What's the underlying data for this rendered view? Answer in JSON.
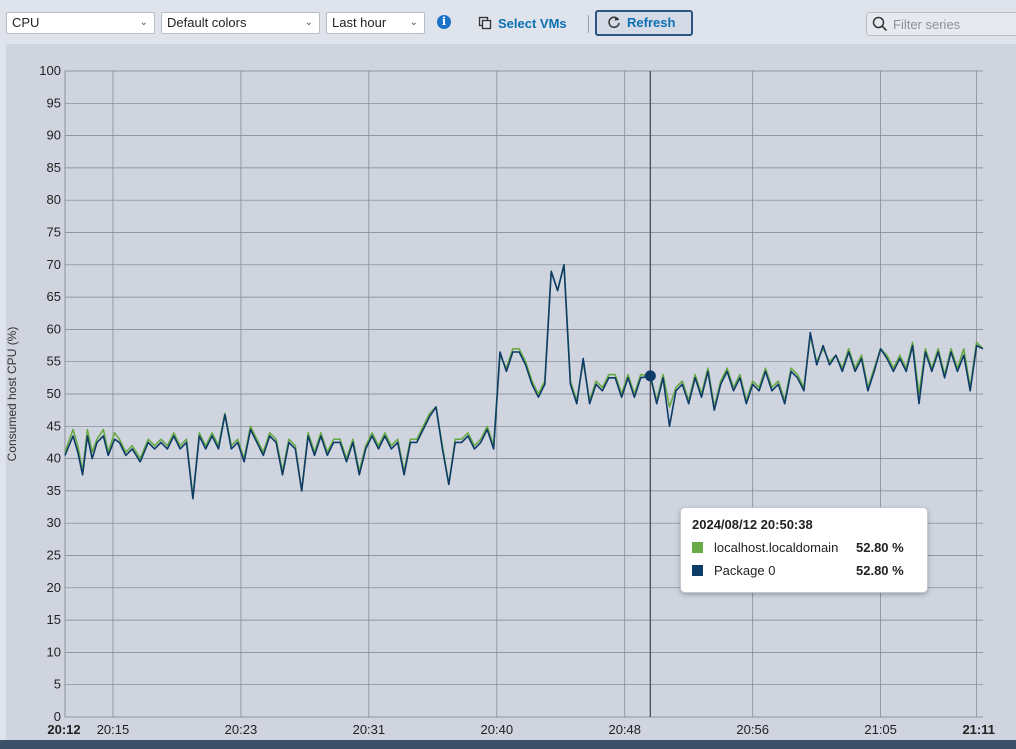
{
  "toolbar": {
    "metric_select": "CPU",
    "color_select": "Default colors",
    "range_select": "Last hour",
    "select_vms_label": "Select VMs",
    "refresh_label": "Refresh",
    "filter_placeholder": "Filter series"
  },
  "colors": {
    "series_green": "#6aaa46",
    "series_navy": "#0e3c68",
    "accent_blue": "#0b6fb3"
  },
  "icons": [
    "chevron-down-icon",
    "info-icon",
    "vm-group-icon",
    "refresh-icon",
    "search-icon"
  ],
  "tooltip": {
    "time": "2024/08/12 20:50:38",
    "rows": [
      {
        "name": "localhost.localdomain",
        "value": "52.80 %",
        "color": "#6aaa46"
      },
      {
        "name": "Package 0",
        "value": "52.80 %",
        "color": "#0e3c68"
      }
    ]
  },
  "chart_data": {
    "type": "line",
    "title": "",
    "xlabel": "",
    "ylabel": "Consumed host CPU (%)",
    "ylim": [
      0,
      100
    ],
    "yticks": [
      0,
      5,
      10,
      15,
      20,
      25,
      30,
      35,
      40,
      45,
      50,
      55,
      60,
      65,
      70,
      75,
      80,
      85,
      90,
      95,
      100
    ],
    "xlim": [
      "20:12",
      "21:11"
    ],
    "xticks": [
      {
        "label": "20:12",
        "min": 0,
        "bold": true
      },
      {
        "label": "20:15",
        "min": 3,
        "bold": false
      },
      {
        "label": "20:23",
        "min": 11,
        "bold": false
      },
      {
        "label": "20:31",
        "min": 19,
        "bold": false
      },
      {
        "label": "20:40",
        "min": 27,
        "bold": false
      },
      {
        "label": "20:48",
        "min": 35,
        "bold": false
      },
      {
        "label": "20:56",
        "min": 43,
        "bold": false
      },
      {
        "label": "21:05",
        "min": 51,
        "bold": false
      },
      {
        "label": "21:11",
        "min": 57,
        "bold": true
      }
    ],
    "grid": true,
    "crosshair_min": 36.6,
    "marker": {
      "min": 36.6,
      "value": 52.8
    },
    "series": [
      {
        "name": "localhost.localdomain",
        "color": "#6aaa46",
        "points": [
          [
            0,
            41
          ],
          [
            0.5,
            44.5
          ],
          [
            0.8,
            42
          ],
          [
            1.1,
            38
          ],
          [
            1.4,
            44.5
          ],
          [
            1.7,
            41
          ],
          [
            2.0,
            43
          ],
          [
            2.4,
            44.5
          ],
          [
            2.7,
            41
          ],
          [
            3.1,
            44
          ],
          [
            3.4,
            43
          ],
          [
            3.8,
            41
          ],
          [
            4.2,
            42
          ],
          [
            4.7,
            40
          ],
          [
            5.2,
            43
          ],
          [
            5.6,
            42
          ],
          [
            6.0,
            43
          ],
          [
            6.4,
            42
          ],
          [
            6.8,
            44
          ],
          [
            7.2,
            42
          ],
          [
            7.6,
            43
          ],
          [
            8.0,
            34
          ],
          [
            8.4,
            44
          ],
          [
            8.8,
            42
          ],
          [
            9.2,
            44
          ],
          [
            9.6,
            42
          ],
          [
            10.0,
            47
          ],
          [
            10.4,
            42
          ],
          [
            10.8,
            43
          ],
          [
            11.2,
            40
          ],
          [
            11.6,
            45
          ],
          [
            12.0,
            43
          ],
          [
            12.4,
            41
          ],
          [
            12.8,
            44
          ],
          [
            13.2,
            43
          ],
          [
            13.6,
            38
          ],
          [
            14.0,
            43
          ],
          [
            14.4,
            42
          ],
          [
            14.8,
            35
          ],
          [
            15.2,
            44
          ],
          [
            15.6,
            41
          ],
          [
            16.0,
            44
          ],
          [
            16.4,
            41
          ],
          [
            16.8,
            43
          ],
          [
            17.2,
            43
          ],
          [
            17.6,
            40
          ],
          [
            18.0,
            43
          ],
          [
            18.4,
            38
          ],
          [
            18.8,
            42
          ],
          [
            19.2,
            44
          ],
          [
            19.6,
            42
          ],
          [
            20.0,
            44
          ],
          [
            20.4,
            42
          ],
          [
            20.8,
            43
          ],
          [
            21.2,
            38
          ],
          [
            21.6,
            43
          ],
          [
            22.0,
            43
          ],
          [
            22.4,
            45
          ],
          [
            22.8,
            47
          ],
          [
            23.2,
            48
          ],
          [
            23.6,
            42
          ],
          [
            24.0,
            36
          ],
          [
            24.4,
            43
          ],
          [
            24.8,
            43
          ],
          [
            25.2,
            44
          ],
          [
            25.6,
            42
          ],
          [
            26.0,
            43
          ],
          [
            26.4,
            45
          ],
          [
            26.8,
            42
          ],
          [
            27.2,
            56
          ],
          [
            27.6,
            54
          ],
          [
            28.0,
            57
          ],
          [
            28.4,
            57
          ],
          [
            28.8,
            55
          ],
          [
            29.2,
            52
          ],
          [
            29.6,
            50
          ],
          [
            30.0,
            52
          ],
          [
            30.4,
            69
          ],
          [
            30.8,
            66
          ],
          [
            31.2,
            70
          ],
          [
            31.6,
            52
          ],
          [
            32.0,
            49
          ],
          [
            32.4,
            55
          ],
          [
            32.8,
            49
          ],
          [
            33.2,
            52
          ],
          [
            33.6,
            51
          ],
          [
            34.0,
            53
          ],
          [
            34.4,
            53
          ],
          [
            34.8,
            50
          ],
          [
            35.2,
            53
          ],
          [
            35.6,
            50
          ],
          [
            36.0,
            53
          ],
          [
            36.6,
            52.8
          ],
          [
            37.0,
            49
          ],
          [
            37.4,
            53
          ],
          [
            37.8,
            48
          ],
          [
            38.2,
            51
          ],
          [
            38.6,
            52
          ],
          [
            39.0,
            49
          ],
          [
            39.4,
            53
          ],
          [
            39.8,
            50
          ],
          [
            40.2,
            54
          ],
          [
            40.6,
            48
          ],
          [
            41.0,
            52
          ],
          [
            41.4,
            54
          ],
          [
            41.8,
            51
          ],
          [
            42.2,
            53
          ],
          [
            42.6,
            49
          ],
          [
            43.0,
            52
          ],
          [
            43.4,
            51
          ],
          [
            43.8,
            54
          ],
          [
            44.2,
            51
          ],
          [
            44.6,
            52
          ],
          [
            45.0,
            49
          ],
          [
            45.4,
            54
          ],
          [
            45.8,
            53
          ],
          [
            46.2,
            51
          ],
          [
            46.6,
            59
          ],
          [
            47.0,
            55
          ],
          [
            47.4,
            57
          ],
          [
            47.8,
            55
          ],
          [
            48.2,
            56
          ],
          [
            48.6,
            54
          ],
          [
            49.0,
            57
          ],
          [
            49.4,
            54
          ],
          [
            49.8,
            56
          ],
          [
            50.2,
            51
          ],
          [
            50.6,
            54
          ],
          [
            51.0,
            57
          ],
          [
            51.4,
            56
          ],
          [
            51.8,
            54
          ],
          [
            52.2,
            56
          ],
          [
            52.6,
            54
          ],
          [
            53.0,
            58
          ],
          [
            53.4,
            50
          ],
          [
            53.8,
            57
          ],
          [
            54.2,
            54
          ],
          [
            54.6,
            57
          ],
          [
            55.0,
            53
          ],
          [
            55.4,
            57
          ],
          [
            55.8,
            54
          ],
          [
            56.2,
            57
          ],
          [
            56.6,
            51
          ],
          [
            57.0,
            58
          ],
          [
            57.4,
            57
          ]
        ]
      },
      {
        "name": "Package 0",
        "color": "#0e3c68",
        "points": [
          [
            0,
            40.5
          ],
          [
            0.5,
            43.5
          ],
          [
            0.8,
            41
          ],
          [
            1.1,
            37.5
          ],
          [
            1.4,
            43.5
          ],
          [
            1.7,
            40
          ],
          [
            2.0,
            42.5
          ],
          [
            2.4,
            43.5
          ],
          [
            2.7,
            40.5
          ],
          [
            3.1,
            43
          ],
          [
            3.4,
            42.5
          ],
          [
            3.8,
            40.5
          ],
          [
            4.2,
            41.5
          ],
          [
            4.7,
            39.5
          ],
          [
            5.2,
            42.5
          ],
          [
            5.6,
            41.5
          ],
          [
            6.0,
            42.5
          ],
          [
            6.4,
            41.5
          ],
          [
            6.8,
            43.5
          ],
          [
            7.2,
            41.5
          ],
          [
            7.6,
            42.5
          ],
          [
            8.0,
            33.8
          ],
          [
            8.4,
            43.5
          ],
          [
            8.8,
            41.5
          ],
          [
            9.2,
            43.5
          ],
          [
            9.6,
            41.5
          ],
          [
            10.0,
            46.8
          ],
          [
            10.4,
            41.5
          ],
          [
            10.8,
            42.5
          ],
          [
            11.2,
            39.5
          ],
          [
            11.6,
            44.5
          ],
          [
            12.0,
            42.5
          ],
          [
            12.4,
            40.5
          ],
          [
            12.8,
            43.5
          ],
          [
            13.2,
            42.5
          ],
          [
            13.6,
            37.5
          ],
          [
            14.0,
            42.5
          ],
          [
            14.4,
            41.5
          ],
          [
            14.8,
            35
          ],
          [
            15.2,
            43.5
          ],
          [
            15.6,
            40.5
          ],
          [
            16.0,
            43.5
          ],
          [
            16.4,
            40.5
          ],
          [
            16.8,
            42.5
          ],
          [
            17.2,
            42.5
          ],
          [
            17.6,
            39.5
          ],
          [
            18.0,
            42.5
          ],
          [
            18.4,
            37.5
          ],
          [
            18.8,
            41.5
          ],
          [
            19.2,
            43.5
          ],
          [
            19.6,
            41.5
          ],
          [
            20.0,
            43.5
          ],
          [
            20.4,
            41.5
          ],
          [
            20.8,
            42.5
          ],
          [
            21.2,
            37.5
          ],
          [
            21.6,
            42.5
          ],
          [
            22.0,
            42.5
          ],
          [
            22.4,
            44.5
          ],
          [
            22.8,
            46.5
          ],
          [
            23.2,
            48
          ],
          [
            23.6,
            41.5
          ],
          [
            24.0,
            36
          ],
          [
            24.4,
            42.5
          ],
          [
            24.8,
            42.5
          ],
          [
            25.2,
            43.5
          ],
          [
            25.6,
            41.5
          ],
          [
            26.0,
            42.5
          ],
          [
            26.4,
            44.5
          ],
          [
            26.8,
            41.5
          ],
          [
            27.2,
            56.5
          ],
          [
            27.6,
            53.5
          ],
          [
            28.0,
            56.5
          ],
          [
            28.4,
            56.5
          ],
          [
            28.8,
            54.5
          ],
          [
            29.2,
            51.5
          ],
          [
            29.6,
            49.5
          ],
          [
            30.0,
            51.5
          ],
          [
            30.4,
            69
          ],
          [
            30.8,
            66
          ],
          [
            31.2,
            70
          ],
          [
            31.6,
            51.5
          ],
          [
            32.0,
            48.5
          ],
          [
            32.4,
            55.5
          ],
          [
            32.8,
            48.5
          ],
          [
            33.2,
            51.5
          ],
          [
            33.6,
            50.5
          ],
          [
            34.0,
            52.5
          ],
          [
            34.4,
            52.5
          ],
          [
            34.8,
            49.5
          ],
          [
            35.2,
            52.5
          ],
          [
            35.6,
            49.5
          ],
          [
            36.0,
            52.5
          ],
          [
            36.6,
            52.8
          ],
          [
            37.0,
            48.5
          ],
          [
            37.4,
            52.5
          ],
          [
            37.8,
            45
          ],
          [
            38.2,
            50.5
          ],
          [
            38.6,
            51.5
          ],
          [
            39.0,
            48.5
          ],
          [
            39.4,
            52.5
          ],
          [
            39.8,
            49.5
          ],
          [
            40.2,
            53.5
          ],
          [
            40.6,
            47.5
          ],
          [
            41.0,
            51.5
          ],
          [
            41.4,
            53.5
          ],
          [
            41.8,
            50.5
          ],
          [
            42.2,
            52.5
          ],
          [
            42.6,
            48.5
          ],
          [
            43.0,
            51.5
          ],
          [
            43.4,
            50.5
          ],
          [
            43.8,
            53.5
          ],
          [
            44.2,
            50.5
          ],
          [
            44.6,
            51.5
          ],
          [
            45.0,
            48.5
          ],
          [
            45.4,
            53.5
          ],
          [
            45.8,
            52.5
          ],
          [
            46.2,
            50.5
          ],
          [
            46.6,
            59.5
          ],
          [
            47.0,
            54.5
          ],
          [
            47.4,
            57.5
          ],
          [
            47.8,
            54.5
          ],
          [
            48.2,
            56
          ],
          [
            48.6,
            53.5
          ],
          [
            49.0,
            56.5
          ],
          [
            49.4,
            53.5
          ],
          [
            49.8,
            55.5
          ],
          [
            50.2,
            50.5
          ],
          [
            50.6,
            53.5
          ],
          [
            51.0,
            57
          ],
          [
            51.4,
            55.5
          ],
          [
            51.8,
            53.5
          ],
          [
            52.2,
            55.5
          ],
          [
            52.6,
            53.5
          ],
          [
            53.0,
            57.5
          ],
          [
            53.4,
            48.5
          ],
          [
            53.8,
            56.5
          ],
          [
            54.2,
            53.5
          ],
          [
            54.6,
            56.5
          ],
          [
            55.0,
            52.5
          ],
          [
            55.4,
            56.5
          ],
          [
            55.8,
            53.5
          ],
          [
            56.2,
            56
          ],
          [
            56.6,
            50.5
          ],
          [
            57.0,
            57.5
          ],
          [
            57.4,
            57
          ]
        ]
      }
    ]
  }
}
